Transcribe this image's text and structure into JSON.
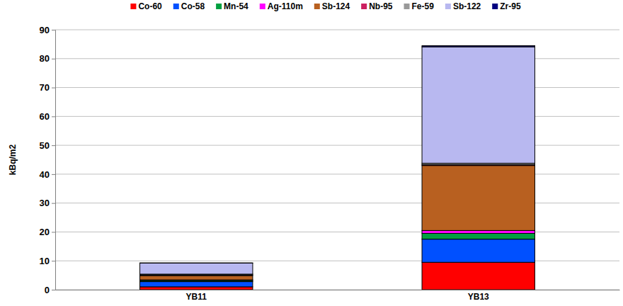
{
  "chart_data": {
    "type": "bar",
    "stacked": true,
    "y_label": "kBq/m2",
    "categories": [
      "YB11",
      "YB13"
    ],
    "series": [
      {
        "name": "Co-60",
        "color": "#ff0000",
        "values": [
          1.0,
          9.5
        ]
      },
      {
        "name": "Co-58",
        "color": "#0050ff",
        "values": [
          1.8,
          8.0
        ]
      },
      {
        "name": "Mn-54",
        "color": "#00a040",
        "values": [
          0.4,
          2.0
        ]
      },
      {
        "name": "Ag-110m",
        "color": "#ff00ff",
        "values": [
          0.2,
          1.0
        ]
      },
      {
        "name": "Sb-124",
        "color": "#b86020",
        "values": [
          1.5,
          22.5
        ]
      },
      {
        "name": "Nb-95",
        "color": "#cc2060",
        "values": [
          0.2,
          0.3
        ]
      },
      {
        "name": "Fe-59",
        "color": "#999999",
        "values": [
          0.3,
          0.5
        ]
      },
      {
        "name": "Sb-122",
        "color": "#b8b8f0",
        "values": [
          3.8,
          40.3
        ]
      },
      {
        "name": "Zr-95",
        "color": "#000080",
        "values": [
          0.1,
          0.4
        ]
      }
    ],
    "ylim": [
      0,
      90
    ],
    "yticks": [
      0,
      10,
      20,
      30,
      40,
      50,
      60,
      70,
      80,
      90
    ],
    "grid": true,
    "legend": "top"
  }
}
